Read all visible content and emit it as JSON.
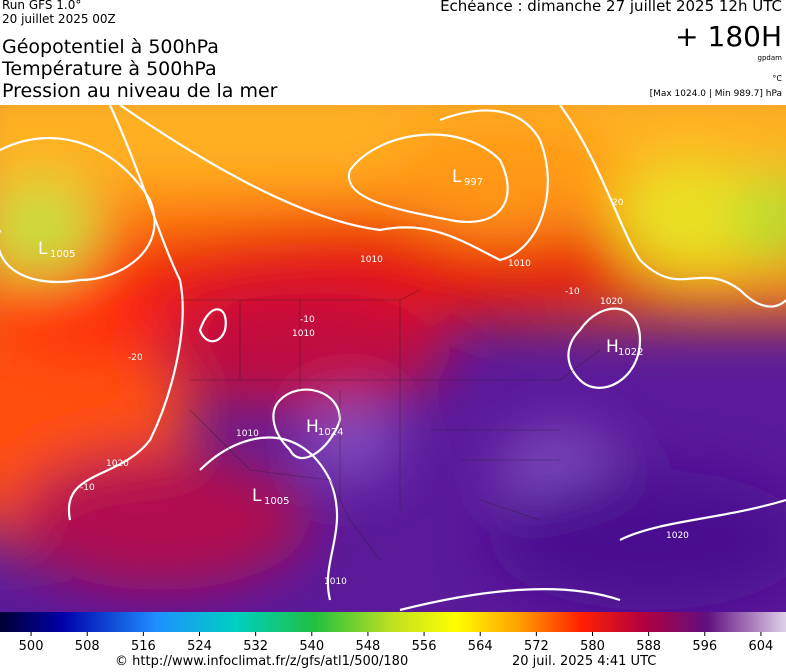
{
  "header": {
    "run": "Run GFS 1.0°",
    "date": "20 juillet 2025 00Z",
    "titles": [
      "Géopotentiel à 500hPa",
      "Température à 500hPa",
      "Pression au niveau de la mer"
    ],
    "echeance": "Echéance : dimanche 27 juillet 2025 12h UTC",
    "lead": "+ 180H",
    "unit": "gpdam",
    "temp_unit": "°C",
    "range": "[Max 1024.0 | Min 989.7] hPa"
  },
  "map": {
    "centers": [
      {
        "symbol": "L",
        "value": "1005"
      },
      {
        "symbol": "L",
        "value": "997"
      },
      {
        "symbol": "H",
        "value": "1024"
      },
      {
        "symbol": "L",
        "value": "1005"
      },
      {
        "symbol": "H",
        "value": "1022"
      }
    ],
    "contour_labels": [
      "1010",
      "1020",
      "1010",
      "1010",
      "1020",
      "1020",
      "1010",
      "1010",
      "-10",
      "-20",
      "-10",
      "-10",
      "20"
    ]
  },
  "colorbar": {
    "ticks": [
      500,
      508,
      516,
      524,
      532,
      540,
      548,
      556,
      564,
      572,
      580,
      588,
      596,
      604
    ]
  },
  "footer": {
    "source": "© http://www.infoclimat.fr/z/gfs/atl1/500/180",
    "generated": "20 juil. 2025  4:41 UTC"
  }
}
